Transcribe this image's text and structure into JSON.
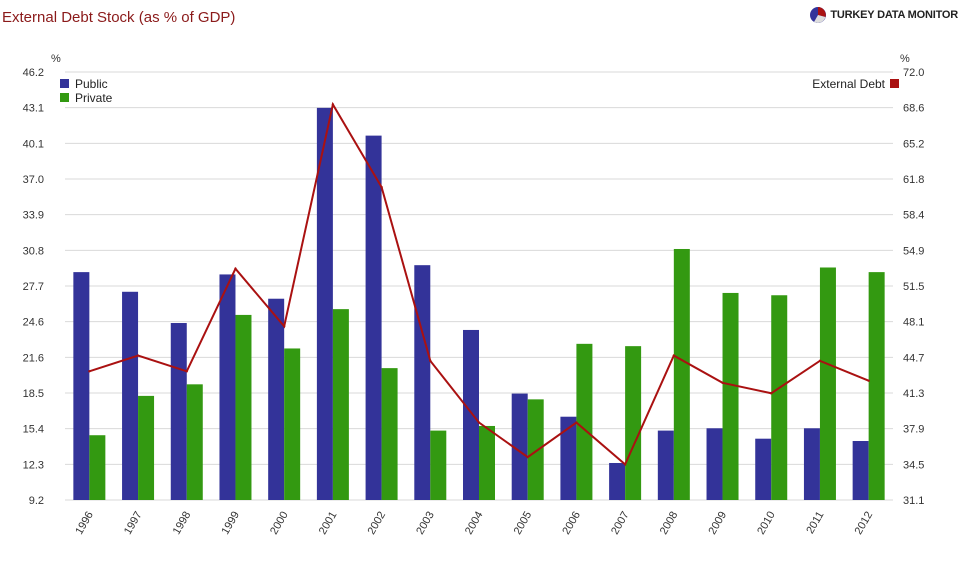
{
  "header": {
    "title": "External Debt Stock (as % of GDP)",
    "brand": "TURKEY DATA MONITOR"
  },
  "colors": {
    "public": "#333399",
    "private": "#339911",
    "external": "#aa1111",
    "grid": "#d9d9d9",
    "title": "#8b1a1a"
  },
  "chart_data": {
    "type": "bar",
    "title": "External Debt Stock (as % of GDP)",
    "categories": [
      "1996",
      "1997",
      "1998",
      "1999",
      "2000",
      "2001",
      "2002",
      "2003",
      "2004",
      "2005",
      "2006",
      "2007",
      "2008",
      "2009",
      "2010",
      "2011",
      "2012"
    ],
    "series": [
      {
        "name": "Public",
        "type": "bar",
        "axis": "left",
        "values": [
          28.9,
          27.2,
          24.5,
          28.7,
          26.6,
          43.1,
          40.7,
          29.5,
          23.9,
          18.4,
          16.4,
          12.4,
          15.2,
          15.4,
          14.5,
          15.4,
          14.3
        ]
      },
      {
        "name": "Private",
        "type": "bar",
        "axis": "left",
        "values": [
          14.8,
          18.2,
          19.2,
          25.2,
          22.3,
          25.7,
          20.6,
          15.2,
          15.6,
          17.9,
          22.7,
          22.5,
          30.9,
          27.1,
          26.9,
          29.3,
          28.9
        ]
      },
      {
        "name": "External Debt",
        "type": "line",
        "axis": "right",
        "values": [
          43.4,
          44.9,
          43.4,
          53.2,
          47.7,
          68.9,
          61.0,
          44.4,
          38.5,
          35.2,
          38.5,
          34.5,
          44.9,
          42.3,
          41.3,
          44.4,
          42.5
        ]
      }
    ],
    "y_left": {
      "label": "%",
      "ticks": [
        "9.2",
        "12.3",
        "15.4",
        "18.5",
        "21.6",
        "24.6",
        "27.7",
        "30.8",
        "33.9",
        "37.0",
        "40.1",
        "43.1",
        "46.2"
      ],
      "range": [
        9.2,
        46.2
      ]
    },
    "y_right": {
      "label": "%",
      "ticks": [
        "31.1",
        "34.5",
        "37.9",
        "41.3",
        "44.7",
        "48.1",
        "51.5",
        "54.9",
        "58.4",
        "61.8",
        "65.2",
        "68.6",
        "72.0"
      ],
      "range": [
        31.1,
        72.0
      ]
    },
    "grid": true,
    "legend_left": "top-left",
    "legend_right": "top-right"
  }
}
